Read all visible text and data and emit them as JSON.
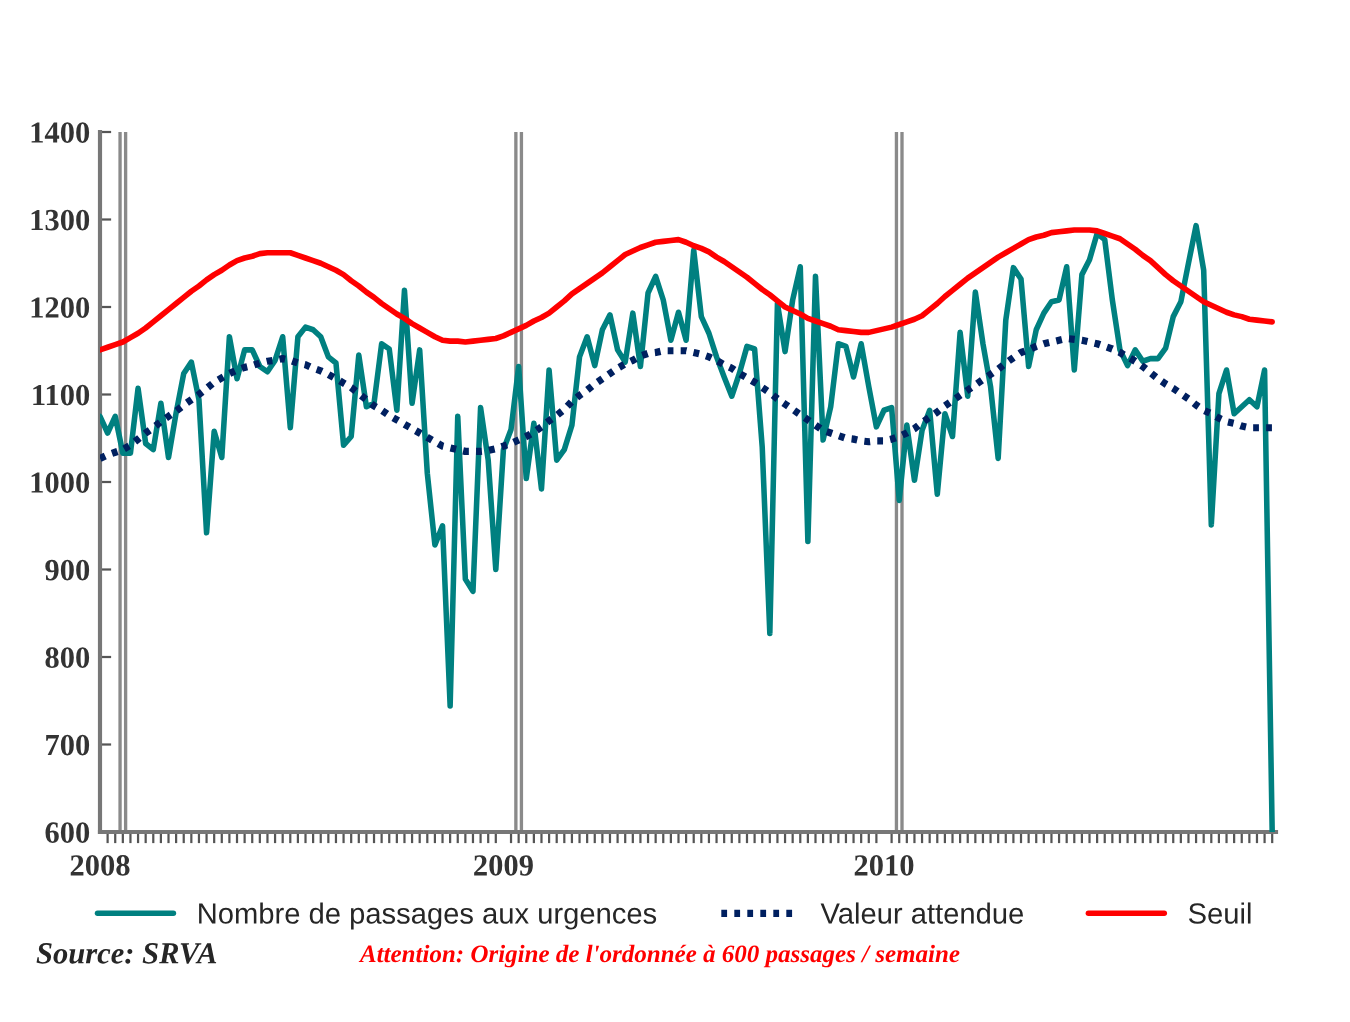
{
  "chart_data": {
    "type": "line",
    "categories": [
      "2008",
      null,
      null,
      null,
      null,
      null,
      null,
      null,
      null,
      null,
      null,
      null,
      null,
      null,
      null,
      null,
      null,
      null,
      null,
      null,
      null,
      null,
      null,
      null,
      null,
      null,
      null,
      null,
      null,
      null,
      null,
      null,
      null,
      null,
      null,
      null,
      null,
      null,
      null,
      null,
      null,
      null,
      null,
      null,
      null,
      null,
      null,
      null,
      null,
      null,
      null,
      null,
      null,
      "2009",
      null,
      null,
      null,
      null,
      null,
      null,
      null,
      null,
      null,
      null,
      null,
      null,
      null,
      null,
      null,
      null,
      null,
      null,
      null,
      null,
      null,
      null,
      null,
      null,
      null,
      null,
      null,
      null,
      null,
      null,
      null,
      null,
      null,
      null,
      null,
      null,
      null,
      null,
      null,
      null,
      null,
      null,
      null,
      null,
      null,
      null,
      null,
      null,
      null,
      "2010",
      null,
      null,
      null,
      null,
      null,
      null,
      null,
      null,
      null,
      null,
      null,
      null,
      null,
      null,
      null,
      null,
      null,
      null,
      null,
      null,
      null,
      null,
      null,
      null,
      null,
      null,
      null,
      null,
      null,
      null,
      null,
      null,
      null,
      null,
      null,
      null,
      null,
      null,
      null,
      null,
      null,
      null,
      null,
      null,
      null,
      null,
      null,
      null,
      null,
      null,
      null
    ],
    "series": [
      {
        "name": "Nombre de passages aux urgences",
        "color": "#008080",
        "line_style": "solid",
        "values": [
          1075,
          1056,
          1075,
          1033,
          1033,
          1107,
          1044,
          1037,
          1090,
          1028,
          1079,
          1124,
          1137,
          1094,
          942,
          1058,
          1028,
          1166,
          1118,
          1151,
          1151,
          1132,
          1126,
          1139,
          1166,
          1062,
          1166,
          1177,
          1174,
          1166,
          1143,
          1136,
          1042,
          1052,
          1145,
          1086,
          1090,
          1158,
          1152,
          1082,
          1219,
          1090,
          1151,
          1010,
          928,
          950,
          744,
          1075,
          889,
          875,
          1085,
          1025,
          900,
          1037,
          1060,
          1132,
          1004,
          1067,
          992,
          1128,
          1025,
          1037,
          1065,
          1143,
          1166,
          1133,
          1174,
          1191,
          1151,
          1137,
          1193,
          1132,
          1216,
          1235,
          1208,
          1162,
          1194,
          1162,
          1265,
          1189,
          1170,
          1143,
          1120,
          1098,
          1124,
          1155,
          1152,
          1040,
          827,
          1204,
          1149,
          1208,
          1246,
          932,
          1235,
          1048,
          1086,
          1158,
          1155,
          1120,
          1158,
          1109,
          1063,
          1082,
          1085,
          979,
          1065,
          1002,
          1059,
          1082,
          986,
          1078,
          1052,
          1171,
          1098,
          1217,
          1158,
          1109,
          1027,
          1185,
          1245,
          1232,
          1132,
          1174,
          1193,
          1206,
          1208,
          1246,
          1128,
          1237,
          1254,
          1284,
          1277,
          1208,
          1151,
          1133,
          1151,
          1138,
          1141,
          1141,
          1153,
          1189,
          1206,
          1250,
          1293,
          1242,
          951,
          1101,
          1128,
          1078,
          1086,
          1094,
          1086,
          1128,
          600
        ]
      },
      {
        "name": "Valeur attendue",
        "color": "#002060",
        "line_style": "dotted",
        "values": [
          1027,
          1031,
          1034,
          1037,
          1042,
          1049,
          1056,
          1062,
          1069,
          1075,
          1081,
          1088,
          1094,
          1100,
          1107,
          1114,
          1119,
          1124,
          1128,
          1131,
          1133,
          1136,
          1138,
          1139,
          1141,
          1139,
          1136,
          1134,
          1130,
          1127,
          1123,
          1118,
          1113,
          1108,
          1101,
          1094,
          1087,
          1082,
          1076,
          1071,
          1066,
          1061,
          1056,
          1051,
          1046,
          1041,
          1039,
          1037,
          1035,
          1035,
          1035,
          1036,
          1038,
          1041,
          1044,
          1048,
          1052,
          1057,
          1063,
          1070,
          1076,
          1083,
          1092,
          1099,
          1105,
          1112,
          1118,
          1124,
          1130,
          1135,
          1139,
          1144,
          1147,
          1148,
          1150,
          1150,
          1150,
          1150,
          1148,
          1146,
          1143,
          1139,
          1134,
          1130,
          1124,
          1119,
          1114,
          1108,
          1102,
          1095,
          1089,
          1083,
          1077,
          1071,
          1065,
          1059,
          1056,
          1053,
          1050,
          1049,
          1047,
          1046,
          1047,
          1047,
          1049,
          1052,
          1056,
          1061,
          1068,
          1074,
          1080,
          1087,
          1093,
          1099,
          1105,
          1111,
          1117,
          1123,
          1129,
          1136,
          1142,
          1148,
          1151,
          1155,
          1158,
          1160,
          1162,
          1164,
          1163,
          1162,
          1160,
          1158,
          1155,
          1152,
          1148,
          1143,
          1138,
          1132,
          1125,
          1118,
          1112,
          1107,
          1101,
          1095,
          1088,
          1082,
          1078,
          1073,
          1069,
          1067,
          1064,
          1062,
          1062,
          1062,
          1062
        ]
      },
      {
        "name": "Seuil",
        "color": "#ff0000",
        "line_style": "solid",
        "values": [
          1151,
          1154,
          1157,
          1160,
          1165,
          1170,
          1176,
          1183,
          1190,
          1197,
          1204,
          1211,
          1218,
          1224,
          1231,
          1237,
          1242,
          1248,
          1253,
          1256,
          1258,
          1261,
          1262,
          1262,
          1262,
          1262,
          1259,
          1256,
          1253,
          1250,
          1246,
          1242,
          1237,
          1230,
          1224,
          1217,
          1211,
          1204,
          1198,
          1192,
          1187,
          1181,
          1176,
          1171,
          1166,
          1162,
          1161,
          1161,
          1160,
          1161,
          1162,
          1163,
          1164,
          1167,
          1171,
          1175,
          1179,
          1184,
          1188,
          1193,
          1200,
          1207,
          1215,
          1221,
          1227,
          1233,
          1239,
          1246,
          1253,
          1260,
          1264,
          1268,
          1271,
          1274,
          1275,
          1276,
          1277,
          1274,
          1270,
          1267,
          1263,
          1257,
          1252,
          1246,
          1240,
          1234,
          1227,
          1220,
          1214,
          1207,
          1200,
          1196,
          1192,
          1187,
          1184,
          1181,
          1178,
          1174,
          1173,
          1172,
          1171,
          1171,
          1173,
          1175,
          1177,
          1180,
          1183,
          1186,
          1190,
          1197,
          1204,
          1212,
          1219,
          1226,
          1233,
          1239,
          1245,
          1251,
          1257,
          1262,
          1267,
          1272,
          1277,
          1280,
          1282,
          1285,
          1286,
          1287,
          1288,
          1288,
          1288,
          1287,
          1284,
          1281,
          1278,
          1272,
          1266,
          1259,
          1253,
          1245,
          1237,
          1230,
          1224,
          1218,
          1212,
          1206,
          1202,
          1198,
          1194,
          1191,
          1189,
          1186,
          1185,
          1184,
          1183
        ]
      }
    ],
    "ylim": [
      600,
      1400
    ],
    "yticks": [
      600,
      700,
      800,
      900,
      1000,
      1100,
      1200,
      1300,
      1400
    ],
    "grid": false,
    "legend": "bottom",
    "marker": "none",
    "annotations": [
      "Source: SRVA",
      "Attention: Origine de l'ordonnée à 600 passages / semaine"
    ]
  }
}
